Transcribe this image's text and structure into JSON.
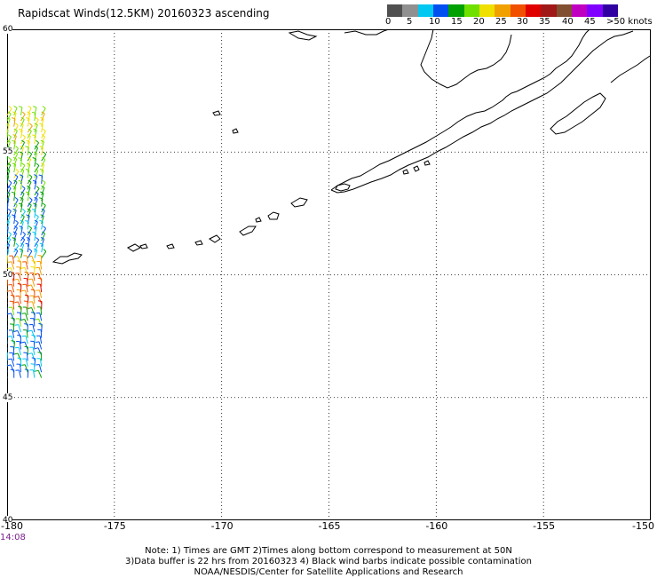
{
  "title": "Rapidscat Winds(12.5KM) 20160323 ascending",
  "colorbar": {
    "labels": [
      "0",
      "5",
      "10",
      "15",
      "20",
      "25",
      "30",
      "35",
      "40",
      "45",
      ">50 knots"
    ],
    "colors": [
      "#505050",
      "#909090",
      "#00c8f0",
      "#0050f0",
      "#00a000",
      "#70e000",
      "#f0e000",
      "#f0a000",
      "#f05000",
      "#e00000",
      "#a01818",
      "#805030",
      "#c000c0",
      "#8000ff",
      "#3000a0"
    ]
  },
  "axes": {
    "lat_labels": [
      "60",
      "55",
      "50",
      "45",
      "40"
    ],
    "lon_labels": [
      "-180",
      "-175",
      "-170",
      "-165",
      "-160",
      "-155",
      "-150"
    ]
  },
  "time_label": "14:08",
  "footer": {
    "line1": "Note: 1) Times are GMT 2)Times along bottom correspond to measurement at 50N",
    "line2": "3)Data buffer is 22 hrs from 20160323 4) Black wind barbs indicate possible contamination",
    "line3": "NOAA/NESDIS/Center for Satellite Applications and Research"
  },
  "map": {
    "projection": "equirectangular",
    "lat_range": [
      40,
      60
    ],
    "lon_range": [
      -180,
      -150
    ],
    "coastline": "Alaska Peninsula and Aleutian Islands",
    "wind_barb_swath_lon": [
      -180,
      -178.4
    ],
    "wind_barb_swath_lat": [
      45.8,
      56.5
    ]
  }
}
